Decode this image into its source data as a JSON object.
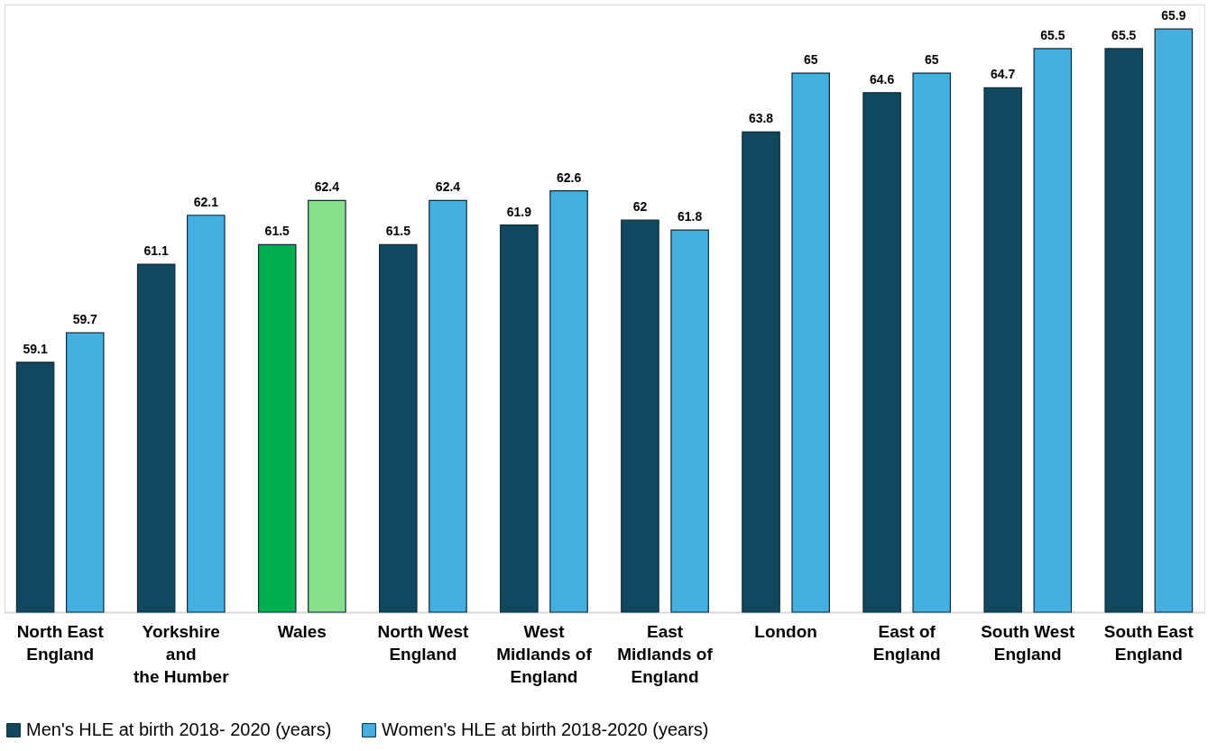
{
  "chart_data": {
    "type": "bar",
    "categories": [
      "North East\nEngland",
      "Yorkshire\nand\nthe Humber",
      "Wales",
      "North West\nEngland",
      "West\nMidlands of\nEngland",
      "East\nMidlands of\nEngland",
      "London",
      "East of\nEngland",
      "South West\nEngland",
      "South East\nEngland"
    ],
    "series": [
      {
        "name": "Men's HLE  at birth 2018- 2020  (years)",
        "color": "#124760",
        "colors": [
          "#124760",
          "#124760",
          "#00b050",
          "#124760",
          "#124760",
          "#124760",
          "#124760",
          "#124760",
          "#124760",
          "#124760"
        ],
        "values": [
          59.1,
          61.1,
          61.5,
          61.5,
          61.9,
          62,
          63.8,
          64.6,
          64.7,
          65.5
        ]
      },
      {
        "name": "Women's HLE at birth  2018-2020  (years)",
        "color": "#45b0e0",
        "colors": [
          "#45b0e0",
          "#45b0e0",
          "#88e08c",
          "#45b0e0",
          "#45b0e0",
          "#45b0e0",
          "#45b0e0",
          "#45b0e0",
          "#45b0e0",
          "#45b0e0"
        ],
        "values": [
          59.7,
          62.1,
          62.4,
          62.4,
          62.6,
          61.8,
          65,
          65,
          65.5,
          65.9
        ]
      }
    ],
    "ylim": [
      54,
      66.4
    ],
    "tick_labels": "x",
    "data_labels": true,
    "grid": false,
    "legend": "bottom"
  }
}
